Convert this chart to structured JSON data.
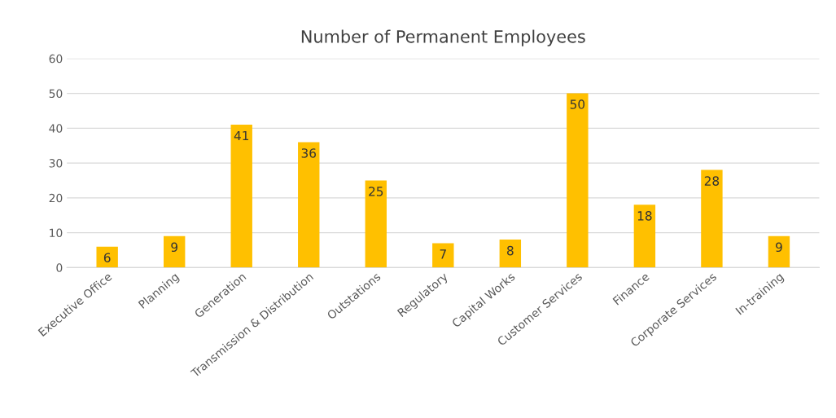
{
  "chart_data": {
    "type": "bar",
    "title": "Number of Permanent Employees",
    "categories": [
      "Executive Office",
      "Planning",
      "Generation",
      "Transmission & Distribution",
      "Outstations",
      "Regulatory",
      "Capital Works",
      "Customer Services",
      "Finance",
      "Corporate Services",
      "In-training"
    ],
    "values": [
      6,
      9,
      41,
      36,
      25,
      7,
      8,
      50,
      18,
      28,
      9
    ],
    "color": "#ffc000",
    "ylim": [
      0,
      60
    ],
    "yticks": [
      0,
      10,
      20,
      30,
      40,
      50,
      60
    ],
    "grid": "y",
    "data_labels": true,
    "legend": false
  }
}
